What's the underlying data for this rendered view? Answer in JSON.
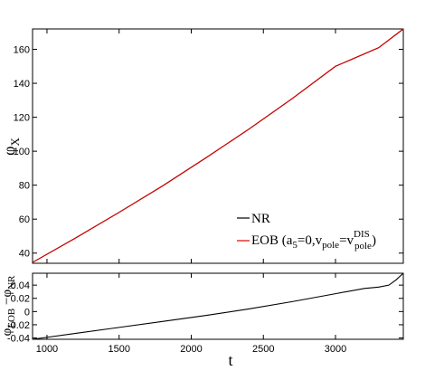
{
  "chart_data": [
    {
      "type": "line",
      "panel": "top",
      "xlim": [
        900,
        3470
      ],
      "ylim": [
        34,
        172
      ],
      "xticks": [
        1000,
        1500,
        2000,
        2500,
        3000
      ],
      "yticks": [
        40,
        60,
        80,
        100,
        120,
        140,
        160
      ],
      "ylabel": {
        "main": "φ",
        "sub": "X"
      },
      "legend_position": "bottom-right",
      "series": [
        {
          "name": "NR",
          "color": "#000000",
          "x": [
            900,
            1200,
            1500,
            1800,
            2100,
            2400,
            2700,
            3000,
            3300,
            3470
          ],
          "y": [
            34.5,
            49,
            64,
            79.5,
            96,
            113,
            131,
            150,
            161,
            172
          ]
        },
        {
          "name": "EOB (a5=0,vpole=vpoleDIS)",
          "legend_parts": {
            "p1": "EOB (a",
            "p1sub": "5",
            "p2": "=0,v",
            "p2sub": "pole",
            "p3": "=v",
            "p3sup": "DIS",
            "p3sub": "pole",
            "p4": ")"
          },
          "color": "#e00000",
          "x": [
            900,
            1200,
            1500,
            1800,
            2100,
            2400,
            2700,
            3000,
            3300,
            3470
          ],
          "y": [
            34.5,
            49,
            64,
            79.5,
            96,
            113,
            131,
            150,
            161,
            172
          ]
        }
      ]
    },
    {
      "type": "line",
      "panel": "bottom",
      "xlim": [
        900,
        3470
      ],
      "ylim": [
        -0.042,
        0.058
      ],
      "xticks": [
        1000,
        1500,
        2000,
        2500,
        3000
      ],
      "xticklabels": [
        "1000",
        "1500",
        "2000",
        "2500",
        "3000"
      ],
      "yticks": [
        -0.04,
        -0.02,
        0,
        0.02,
        0.04
      ],
      "yticklabels": [
        "-0.04",
        "-0.02",
        "0",
        "0.02",
        "0.04"
      ],
      "xlabel": "t",
      "ylabel": {
        "main": "φ",
        "sub1": "EOB",
        "mid": " −φ",
        "sub2": "NR"
      },
      "series": [
        {
          "color": "#000000",
          "x": [
            900,
            1200,
            1500,
            1800,
            2100,
            2400,
            2700,
            3000,
            3200,
            3300,
            3370,
            3420,
            3470
          ],
          "y": [
            -0.042,
            -0.033,
            -0.024,
            -0.015,
            -0.006,
            0.004,
            0.015,
            0.027,
            0.035,
            0.037,
            0.04,
            0.048,
            0.058
          ]
        }
      ]
    }
  ]
}
